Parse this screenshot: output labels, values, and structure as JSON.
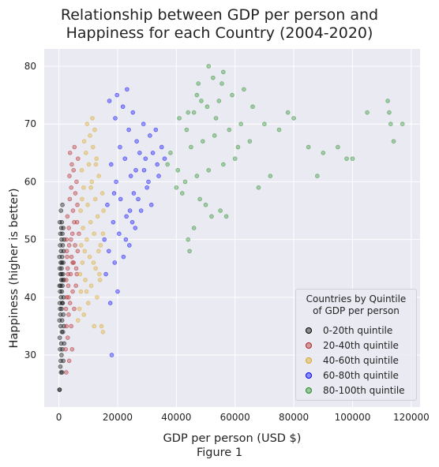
{
  "chart_data": {
    "type": "scatter",
    "title_line1": "Relationship between GDP per person and",
    "title_line2": "Happiness for each Country (2004-2020)",
    "xlabel": "GDP per person (USD $)",
    "ylabel": "Happiness (higher is better)",
    "caption": "Figure 1",
    "xlim": [
      -5000,
      123000
    ],
    "ylim": [
      21,
      83
    ],
    "xticks": [
      0,
      20000,
      40000,
      60000,
      80000,
      100000,
      120000
    ],
    "yticks": [
      30,
      40,
      50,
      60,
      70,
      80
    ],
    "grid": true,
    "legend": {
      "title_line1": "Countries by Quintile",
      "title_line2": "of GDP per person",
      "placement": "lower-right"
    },
    "series": [
      {
        "name": "0-20th quintile",
        "color": "#000000",
        "points": [
          [
            200,
            24
          ],
          [
            250,
            24
          ],
          [
            700,
            27
          ],
          [
            1100,
            27
          ],
          [
            500,
            28
          ],
          [
            600,
            29
          ],
          [
            1500,
            29
          ],
          [
            900,
            30
          ],
          [
            400,
            31
          ],
          [
            1200,
            31
          ],
          [
            800,
            32
          ],
          [
            1800,
            32
          ],
          [
            300,
            33
          ],
          [
            1000,
            34
          ],
          [
            1400,
            34
          ],
          [
            600,
            35
          ],
          [
            1700,
            35
          ],
          [
            200,
            36
          ],
          [
            1100,
            36
          ],
          [
            500,
            37
          ],
          [
            1500,
            37
          ],
          [
            900,
            38
          ],
          [
            300,
            39
          ],
          [
            1300,
            39
          ],
          [
            700,
            40
          ],
          [
            1600,
            40
          ],
          [
            400,
            41
          ],
          [
            1000,
            41
          ],
          [
            200,
            42
          ],
          [
            1200,
            42
          ],
          [
            800,
            43
          ],
          [
            1700,
            43
          ],
          [
            500,
            44
          ],
          [
            1400,
            44
          ],
          [
            300,
            45
          ],
          [
            900,
            45
          ],
          [
            600,
            46
          ],
          [
            1500,
            46
          ],
          [
            200,
            47
          ],
          [
            1100,
            47
          ],
          [
            700,
            48
          ],
          [
            1600,
            48
          ],
          [
            400,
            49
          ],
          [
            1300,
            49
          ],
          [
            900,
            50
          ],
          [
            1800,
            50
          ],
          [
            500,
            51
          ],
          [
            1200,
            51
          ],
          [
            800,
            52
          ],
          [
            1500,
            52
          ],
          [
            300,
            53
          ],
          [
            1000,
            53
          ],
          [
            700,
            55
          ],
          [
            1200,
            56
          ],
          [
            900,
            44
          ],
          [
            1100,
            39
          ],
          [
            1300,
            43
          ],
          [
            600,
            42
          ],
          [
            1000,
            46
          ],
          [
            400,
            38
          ]
        ]
      },
      {
        "name": "20-40th quintile",
        "color": "#b22222",
        "points": [
          [
            2500,
            27
          ],
          [
            3500,
            29
          ],
          [
            2300,
            31
          ],
          [
            4500,
            31
          ],
          [
            3000,
            33
          ],
          [
            2600,
            35
          ],
          [
            4200,
            35
          ],
          [
            3300,
            37
          ],
          [
            2400,
            38
          ],
          [
            5200,
            38
          ],
          [
            3800,
            39
          ],
          [
            2700,
            40
          ],
          [
            4700,
            41
          ],
          [
            3200,
            42
          ],
          [
            5800,
            42
          ],
          [
            2500,
            43
          ],
          [
            4000,
            44
          ],
          [
            6100,
            44
          ],
          [
            3000,
            45
          ],
          [
            5000,
            46
          ],
          [
            2800,
            47
          ],
          [
            4300,
            47
          ],
          [
            6400,
            48
          ],
          [
            3500,
            49
          ],
          [
            5500,
            49
          ],
          [
            2600,
            50
          ],
          [
            4600,
            51
          ],
          [
            6800,
            51
          ],
          [
            3400,
            52
          ],
          [
            5200,
            53
          ],
          [
            2900,
            54
          ],
          [
            4800,
            55
          ],
          [
            6300,
            56
          ],
          [
            3700,
            57
          ],
          [
            5600,
            58
          ],
          [
            4200,
            59
          ],
          [
            6000,
            60
          ],
          [
            3600,
            61
          ],
          [
            5000,
            62
          ],
          [
            4400,
            63
          ],
          [
            6500,
            64
          ],
          [
            3800,
            65
          ],
          [
            5300,
            66
          ],
          [
            4700,
            46
          ],
          [
            3100,
            44
          ],
          [
            5900,
            45
          ],
          [
            2700,
            48
          ],
          [
            4100,
            50
          ],
          [
            6200,
            53
          ],
          [
            3300,
            40
          ]
        ]
      },
      {
        "name": "40-60th quintile",
        "color": "#daa520",
        "points": [
          [
            6500,
            36
          ],
          [
            8500,
            37
          ],
          [
            12000,
            35
          ],
          [
            14500,
            35
          ],
          [
            15000,
            34
          ],
          [
            7000,
            38
          ],
          [
            10000,
            39
          ],
          [
            13000,
            40
          ],
          [
            7500,
            41
          ],
          [
            11000,
            42
          ],
          [
            9000,
            43
          ],
          [
            14000,
            43
          ],
          [
            7200,
            44
          ],
          [
            12500,
            45
          ],
          [
            8000,
            46
          ],
          [
            10500,
            47
          ],
          [
            13500,
            48
          ],
          [
            7600,
            49
          ],
          [
            9500,
            50
          ],
          [
            12000,
            51
          ],
          [
            15000,
            51
          ],
          [
            8200,
            52
          ],
          [
            10800,
            53
          ],
          [
            13200,
            54
          ],
          [
            7400,
            55
          ],
          [
            9800,
            56
          ],
          [
            12400,
            57
          ],
          [
            14800,
            58
          ],
          [
            8400,
            59
          ],
          [
            11200,
            60
          ],
          [
            13600,
            61
          ],
          [
            7800,
            62
          ],
          [
            10200,
            63
          ],
          [
            12800,
            64
          ],
          [
            9200,
            65
          ],
          [
            11600,
            66
          ],
          [
            8600,
            67
          ],
          [
            10600,
            68
          ],
          [
            12200,
            69
          ],
          [
            9600,
            70
          ],
          [
            11400,
            71
          ],
          [
            8800,
            48
          ],
          [
            11800,
            46
          ],
          [
            14200,
            49
          ],
          [
            9400,
            41
          ],
          [
            13800,
            44
          ],
          [
            7900,
            57
          ],
          [
            10900,
            59
          ],
          [
            15200,
            55
          ],
          [
            12600,
            63
          ]
        ]
      },
      {
        "name": "60-80th quintile",
        "color": "#0000ff",
        "points": [
          [
            18000,
            30
          ],
          [
            17500,
            39
          ],
          [
            20000,
            41
          ],
          [
            16000,
            44
          ],
          [
            19000,
            46
          ],
          [
            22000,
            47
          ],
          [
            17000,
            48
          ],
          [
            24000,
            49
          ],
          [
            15500,
            50
          ],
          [
            20500,
            51
          ],
          [
            26000,
            52
          ],
          [
            18500,
            53
          ],
          [
            23000,
            54
          ],
          [
            28000,
            55
          ],
          [
            16500,
            56
          ],
          [
            21000,
            57
          ],
          [
            25500,
            58
          ],
          [
            30000,
            59
          ],
          [
            19500,
            60
          ],
          [
            24500,
            61
          ],
          [
            29000,
            62
          ],
          [
            17800,
            63
          ],
          [
            22500,
            64
          ],
          [
            27500,
            65
          ],
          [
            32000,
            65
          ],
          [
            20800,
            66
          ],
          [
            26500,
            67
          ],
          [
            31000,
            68
          ],
          [
            23800,
            69
          ],
          [
            28800,
            70
          ],
          [
            19200,
            71
          ],
          [
            25200,
            72
          ],
          [
            30500,
            60
          ],
          [
            21800,
            73
          ],
          [
            17200,
            74
          ],
          [
            19800,
            75
          ],
          [
            23200,
            76
          ],
          [
            33500,
            63
          ],
          [
            35000,
            66
          ],
          [
            34000,
            61
          ],
          [
            27000,
            57
          ],
          [
            25000,
            53
          ],
          [
            31500,
            56
          ],
          [
            22800,
            50
          ],
          [
            29500,
            64
          ],
          [
            18800,
            58
          ],
          [
            24200,
            55
          ],
          [
            33000,
            69
          ],
          [
            26200,
            62
          ],
          [
            36000,
            64
          ]
        ]
      },
      {
        "name": "80-100th quintile",
        "color": "#228b22",
        "points": [
          [
            44500,
            48
          ],
          [
            44000,
            50
          ],
          [
            46000,
            52
          ],
          [
            52000,
            54
          ],
          [
            55000,
            55
          ],
          [
            57000,
            54
          ],
          [
            50000,
            56
          ],
          [
            48000,
            57
          ],
          [
            42000,
            58
          ],
          [
            40000,
            59
          ],
          [
            43000,
            60
          ],
          [
            47000,
            61
          ],
          [
            51000,
            62
          ],
          [
            56000,
            63
          ],
          [
            60000,
            64
          ],
          [
            38000,
            65
          ],
          [
            45000,
            66
          ],
          [
            49000,
            67
          ],
          [
            53000,
            68
          ],
          [
            58000,
            69
          ],
          [
            62000,
            70
          ],
          [
            41000,
            71
          ],
          [
            46000,
            72
          ],
          [
            50500,
            73
          ],
          [
            54500,
            74
          ],
          [
            59000,
            75
          ],
          [
            63000,
            76
          ],
          [
            47500,
            77
          ],
          [
            52500,
            78
          ],
          [
            51000,
            80
          ],
          [
            56000,
            79
          ],
          [
            66000,
            73
          ],
          [
            70000,
            70
          ],
          [
            75000,
            69
          ],
          [
            80000,
            71
          ],
          [
            85000,
            66
          ],
          [
            90000,
            65
          ],
          [
            95000,
            66
          ],
          [
            100000,
            64
          ],
          [
            105000,
            72
          ],
          [
            112000,
            74
          ],
          [
            113000,
            70
          ],
          [
            114000,
            67
          ],
          [
            117000,
            70
          ],
          [
            112500,
            72
          ],
          [
            88000,
            61
          ],
          [
            78000,
            72
          ],
          [
            72000,
            61
          ],
          [
            68000,
            59
          ],
          [
            98000,
            64
          ],
          [
            65000,
            67
          ],
          [
            61000,
            66
          ],
          [
            44000,
            72
          ],
          [
            48500,
            74
          ],
          [
            53500,
            71
          ],
          [
            43500,
            69
          ],
          [
            40500,
            62
          ],
          [
            37000,
            63
          ],
          [
            47000,
            75
          ],
          [
            55500,
            77
          ]
        ]
      }
    ]
  }
}
